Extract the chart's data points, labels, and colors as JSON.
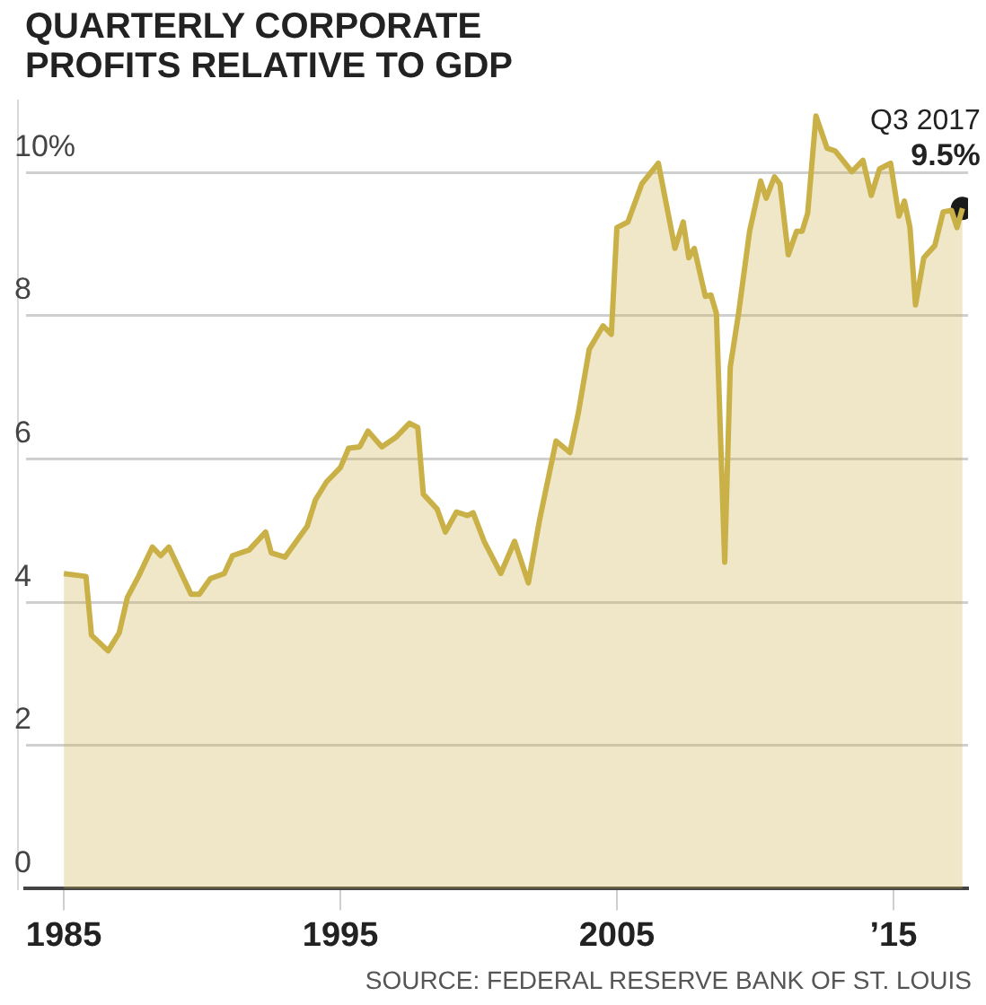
{
  "chart_data": {
    "type": "area",
    "title": "QUARTERLY CORPORATE PROFITS RELATIVE TO GDP",
    "x": [
      1985.0,
      1985.8,
      1986.0,
      1986.6,
      1987.0,
      1987.3,
      1987.7,
      1988.2,
      1988.5,
      1988.8,
      1989.6,
      1989.9,
      1990.3,
      1990.8,
      1991.1,
      1991.7,
      1992.3,
      1992.5,
      1993.0,
      1993.8,
      1994.1,
      1994.5,
      1995.0,
      1995.3,
      1995.7,
      1996.0,
      1996.5,
      1997.0,
      1997.5,
      1997.8,
      1998.0,
      1998.5,
      1998.8,
      1999.2,
      1999.6,
      1999.8,
      2000.2,
      2000.8,
      2001.3,
      2001.8,
      2002.2,
      2002.8,
      2003.3,
      2003.6,
      2004.0,
      2004.5,
      2004.8,
      2005.0,
      2005.4,
      2005.9,
      2006.5,
      2007.1,
      2007.4,
      2007.6,
      2007.8,
      2008.2,
      2008.4,
      2008.6,
      2008.9,
      2009.1,
      2009.4,
      2009.8,
      2010.2,
      2010.4,
      2010.7,
      2010.9,
      2011.2,
      2011.5,
      2011.7,
      2011.9,
      2012.2,
      2012.6,
      2012.9,
      2013.5,
      2013.9,
      2014.2,
      2014.5,
      2014.9,
      2015.2,
      2015.4,
      2015.6,
      2015.8,
      2016.1,
      2016.5,
      2016.8,
      2017.1,
      2017.3,
      2017.5
    ],
    "series": [
      {
        "color": "#c9b148",
        "values": [
          4.4,
          4.36,
          3.54,
          3.32,
          3.57,
          4.07,
          4.36,
          4.77,
          4.65,
          4.77,
          4.11,
          4.11,
          4.33,
          4.4,
          4.65,
          4.73,
          4.98,
          4.69,
          4.63,
          5.06,
          5.43,
          5.68,
          5.88,
          6.15,
          6.17,
          6.39,
          6.17,
          6.3,
          6.5,
          6.44,
          5.51,
          5.3,
          4.98,
          5.26,
          5.21,
          5.25,
          4.85,
          4.4,
          4.85,
          4.27,
          5.14,
          6.25,
          6.09,
          6.63,
          7.53,
          7.86,
          7.74,
          9.23,
          9.31,
          9.84,
          10.13,
          8.94,
          9.31,
          8.81,
          8.94,
          8.27,
          8.29,
          8.03,
          4.56,
          7.28,
          8.03,
          9.18,
          9.88,
          9.64,
          9.94,
          9.84,
          8.85,
          9.18,
          9.18,
          9.43,
          10.79,
          10.34,
          10.3,
          10.01,
          10.17,
          9.68,
          10.05,
          10.13,
          9.39,
          9.6,
          9.23,
          8.15,
          8.81,
          8.98,
          9.45,
          9.47,
          9.23,
          9.5
        ]
      },
      {
        "type": "scatter",
        "color": "#1a1a1a",
        "marker": "circle",
        "x": [
          2017.5
        ],
        "values": [
          9.5
        ]
      }
    ],
    "xlim": [
      1983.6,
      2017.7
    ],
    "ylim": [
      0,
      11
    ],
    "xticks": [
      1985,
      1995,
      2005,
      {
        "value": 2015,
        "label": "’15"
      }
    ],
    "yticks": [
      0,
      2,
      4,
      6,
      8,
      {
        "value": 10,
        "label": "10%"
      }
    ],
    "grid": "y",
    "annotations": [
      {
        "text": "Q3 2017",
        "x": 2017.5,
        "y": 9.5
      },
      {
        "text": "9.5%",
        "x": 2017.5,
        "y": 9.5
      },
      "SOURCE: FEDERAL RESERVE BANK OF ST. LOUIS"
    ]
  }
}
